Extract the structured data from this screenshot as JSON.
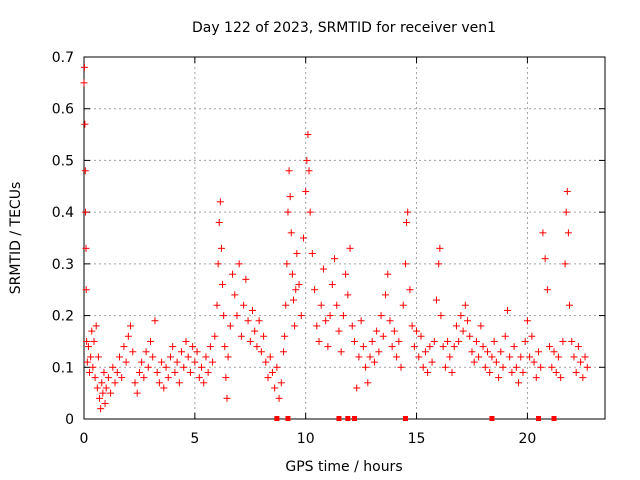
{
  "chart_data": {
    "type": "scatter",
    "title": "Day 122 of 2023, SRMTID for receiver ven1",
    "xlabel": "GPS time / hours",
    "ylabel": "SRMTID / TECUs",
    "xlim": [
      0,
      23.5
    ],
    "ylim": [
      0,
      0.7
    ],
    "xticks": [
      0,
      5,
      10,
      15,
      20
    ],
    "xtick_labels": [
      "0",
      "5",
      "10",
      "15",
      "20"
    ],
    "yticks": [
      0,
      0.1,
      0.2,
      0.3,
      0.4,
      0.5,
      0.6,
      0.7
    ],
    "ytick_labels": [
      "0",
      "0.1",
      "0.2",
      "0.3",
      "0.4",
      "0.5",
      "0.6",
      "0.7"
    ],
    "grid": true,
    "marker": "+",
    "color": "#ff0000",
    "series": [
      {
        "name": "SRMTID",
        "points": [
          [
            0.0,
            0.65
          ],
          [
            0.02,
            0.68
          ],
          [
            0.04,
            0.57
          ],
          [
            0.06,
            0.48
          ],
          [
            0.07,
            0.4
          ],
          [
            0.09,
            0.33
          ],
          [
            0.1,
            0.25
          ],
          [
            0.12,
            0.15
          ],
          [
            0.15,
            0.11
          ],
          [
            0.2,
            0.14
          ],
          [
            0.25,
            0.09
          ],
          [
            0.3,
            0.12
          ],
          [
            0.35,
            0.17
          ],
          [
            0.4,
            0.1
          ],
          [
            0.45,
            0.15
          ],
          [
            0.5,
            0.08
          ],
          [
            0.55,
            0.18
          ],
          [
            0.6,
            0.06
          ],
          [
            0.65,
            0.12
          ],
          [
            0.7,
            0.04
          ],
          [
            0.75,
            0.02
          ],
          [
            0.8,
            0.07
          ],
          [
            0.85,
            0.05
          ],
          [
            0.9,
            0.09
          ],
          [
            0.95,
            0.03
          ],
          [
            1.0,
            0.06
          ],
          [
            1.1,
            0.08
          ],
          [
            1.2,
            0.05
          ],
          [
            1.3,
            0.1
          ],
          [
            1.4,
            0.07
          ],
          [
            1.5,
            0.09
          ],
          [
            1.6,
            0.12
          ],
          [
            1.7,
            0.08
          ],
          [
            1.8,
            0.14
          ],
          [
            1.9,
            0.11
          ],
          [
            2.0,
            0.16
          ],
          [
            2.1,
            0.18
          ],
          [
            2.2,
            0.13
          ],
          [
            2.3,
            0.07
          ],
          [
            2.4,
            0.05
          ],
          [
            2.5,
            0.09
          ],
          [
            2.6,
            0.11
          ],
          [
            2.7,
            0.08
          ],
          [
            2.8,
            0.13
          ],
          [
            2.9,
            0.1
          ],
          [
            3.0,
            0.15
          ],
          [
            3.1,
            0.12
          ],
          [
            3.2,
            0.19
          ],
          [
            3.3,
            0.09
          ],
          [
            3.4,
            0.07
          ],
          [
            3.5,
            0.11
          ],
          [
            3.6,
            0.06
          ],
          [
            3.7,
            0.1
          ],
          [
            3.8,
            0.08
          ],
          [
            3.9,
            0.12
          ],
          [
            4.0,
            0.14
          ],
          [
            4.1,
            0.09
          ],
          [
            4.2,
            0.11
          ],
          [
            4.3,
            0.07
          ],
          [
            4.4,
            0.13
          ],
          [
            4.5,
            0.1
          ],
          [
            4.6,
            0.15
          ],
          [
            4.7,
            0.12
          ],
          [
            4.8,
            0.09
          ],
          [
            4.9,
            0.14
          ],
          [
            5.0,
            0.11
          ],
          [
            5.1,
            0.13
          ],
          [
            5.2,
            0.08
          ],
          [
            5.3,
            0.1
          ],
          [
            5.4,
            0.07
          ],
          [
            5.5,
            0.12
          ],
          [
            5.6,
            0.09
          ],
          [
            5.7,
            0.14
          ],
          [
            5.8,
            0.11
          ],
          [
            5.9,
            0.16
          ],
          [
            6.0,
            0.22
          ],
          [
            6.05,
            0.3
          ],
          [
            6.1,
            0.38
          ],
          [
            6.15,
            0.42
          ],
          [
            6.2,
            0.33
          ],
          [
            6.25,
            0.26
          ],
          [
            6.3,
            0.2
          ],
          [
            6.35,
            0.14
          ],
          [
            6.4,
            0.08
          ],
          [
            6.45,
            0.04
          ],
          [
            6.5,
            0.12
          ],
          [
            6.6,
            0.18
          ],
          [
            6.7,
            0.28
          ],
          [
            6.8,
            0.24
          ],
          [
            6.9,
            0.2
          ],
          [
            7.0,
            0.3
          ],
          [
            7.1,
            0.16
          ],
          [
            7.2,
            0.22
          ],
          [
            7.3,
            0.27
          ],
          [
            7.4,
            0.19
          ],
          [
            7.5,
            0.15
          ],
          [
            7.6,
            0.21
          ],
          [
            7.7,
            0.17
          ],
          [
            7.8,
            0.14
          ],
          [
            7.9,
            0.19
          ],
          [
            8.0,
            0.13
          ],
          [
            8.1,
            0.16
          ],
          [
            8.2,
            0.11
          ],
          [
            8.3,
            0.08
          ],
          [
            8.4,
            0.12
          ],
          [
            8.5,
            0.09
          ],
          [
            8.6,
            0.06
          ],
          [
            8.7,
            0.1
          ],
          [
            8.8,
            0.04
          ],
          [
            8.9,
            0.07
          ],
          [
            9.0,
            0.13
          ],
          [
            9.05,
            0.16
          ],
          [
            9.1,
            0.22
          ],
          [
            9.15,
            0.3
          ],
          [
            9.2,
            0.4
          ],
          [
            9.25,
            0.48
          ],
          [
            9.3,
            0.43
          ],
          [
            9.35,
            0.36
          ],
          [
            9.4,
            0.28
          ],
          [
            9.45,
            0.23
          ],
          [
            9.5,
            0.18
          ],
          [
            9.55,
            0.25
          ],
          [
            9.6,
            0.32
          ],
          [
            9.7,
            0.26
          ],
          [
            9.8,
            0.2
          ],
          [
            9.9,
            0.35
          ],
          [
            10.0,
            0.44
          ],
          [
            10.05,
            0.5
          ],
          [
            10.1,
            0.55
          ],
          [
            10.15,
            0.48
          ],
          [
            10.2,
            0.4
          ],
          [
            10.3,
            0.32
          ],
          [
            10.4,
            0.25
          ],
          [
            10.5,
            0.18
          ],
          [
            10.6,
            0.15
          ],
          [
            10.7,
            0.22
          ],
          [
            10.8,
            0.29
          ],
          [
            10.9,
            0.19
          ],
          [
            11.0,
            0.14
          ],
          [
            11.1,
            0.2
          ],
          [
            11.2,
            0.26
          ],
          [
            11.3,
            0.31
          ],
          [
            11.4,
            0.22
          ],
          [
            11.5,
            0.17
          ],
          [
            11.6,
            0.13
          ],
          [
            11.7,
            0.2
          ],
          [
            11.8,
            0.28
          ],
          [
            11.9,
            0.24
          ],
          [
            12.0,
            0.33
          ],
          [
            12.1,
            0.18
          ],
          [
            12.2,
            0.15
          ],
          [
            12.3,
            0.06
          ],
          [
            12.4,
            0.12
          ],
          [
            12.5,
            0.19
          ],
          [
            12.6,
            0.14
          ],
          [
            12.7,
            0.1
          ],
          [
            12.8,
            0.07
          ],
          [
            12.9,
            0.12
          ],
          [
            13.0,
            0.15
          ],
          [
            13.1,
            0.11
          ],
          [
            13.2,
            0.17
          ],
          [
            13.3,
            0.13
          ],
          [
            13.4,
            0.2
          ],
          [
            13.5,
            0.16
          ],
          [
            13.6,
            0.24
          ],
          [
            13.7,
            0.28
          ],
          [
            13.8,
            0.19
          ],
          [
            13.9,
            0.14
          ],
          [
            14.0,
            0.17
          ],
          [
            14.1,
            0.12
          ],
          [
            14.2,
            0.15
          ],
          [
            14.3,
            0.1
          ],
          [
            14.4,
            0.22
          ],
          [
            14.5,
            0.3
          ],
          [
            14.55,
            0.38
          ],
          [
            14.6,
            0.4
          ],
          [
            14.7,
            0.25
          ],
          [
            14.8,
            0.18
          ],
          [
            14.9,
            0.14
          ],
          [
            15.0,
            0.17
          ],
          [
            15.1,
            0.12
          ],
          [
            15.2,
            0.16
          ],
          [
            15.3,
            0.1
          ],
          [
            15.4,
            0.13
          ],
          [
            15.5,
            0.09
          ],
          [
            15.6,
            0.14
          ],
          [
            15.7,
            0.11
          ],
          [
            15.8,
            0.15
          ],
          [
            15.9,
            0.23
          ],
          [
            16.0,
            0.3
          ],
          [
            16.05,
            0.33
          ],
          [
            16.1,
            0.2
          ],
          [
            16.2,
            0.14
          ],
          [
            16.3,
            0.1
          ],
          [
            16.4,
            0.15
          ],
          [
            16.5,
            0.12
          ],
          [
            16.6,
            0.09
          ],
          [
            16.7,
            0.14
          ],
          [
            16.8,
            0.18
          ],
          [
            16.9,
            0.15
          ],
          [
            17.0,
            0.2
          ],
          [
            17.1,
            0.17
          ],
          [
            17.2,
            0.22
          ],
          [
            17.3,
            0.19
          ],
          [
            17.4,
            0.16
          ],
          [
            17.5,
            0.13
          ],
          [
            17.6,
            0.11
          ],
          [
            17.7,
            0.15
          ],
          [
            17.8,
            0.12
          ],
          [
            17.9,
            0.18
          ],
          [
            18.0,
            0.14
          ],
          [
            18.1,
            0.1
          ],
          [
            18.2,
            0.13
          ],
          [
            18.3,
            0.09
          ],
          [
            18.4,
            0.12
          ],
          [
            18.5,
            0.15
          ],
          [
            18.6,
            0.11
          ],
          [
            18.7,
            0.08
          ],
          [
            18.8,
            0.13
          ],
          [
            18.9,
            0.1
          ],
          [
            19.0,
            0.16
          ],
          [
            19.1,
            0.21
          ],
          [
            19.2,
            0.12
          ],
          [
            19.3,
            0.09
          ],
          [
            19.4,
            0.14
          ],
          [
            19.5,
            0.1
          ],
          [
            19.6,
            0.07
          ],
          [
            19.7,
            0.12
          ],
          [
            19.8,
            0.09
          ],
          [
            19.9,
            0.15
          ],
          [
            20.0,
            0.19
          ],
          [
            20.1,
            0.12
          ],
          [
            20.2,
            0.16
          ],
          [
            20.3,
            0.11
          ],
          [
            20.4,
            0.08
          ],
          [
            20.5,
            0.13
          ],
          [
            20.6,
            0.1
          ],
          [
            20.7,
            0.36
          ],
          [
            20.8,
            0.31
          ],
          [
            20.9,
            0.25
          ],
          [
            21.0,
            0.14
          ],
          [
            21.1,
            0.1
          ],
          [
            21.2,
            0.13
          ],
          [
            21.3,
            0.09
          ],
          [
            21.4,
            0.12
          ],
          [
            21.5,
            0.08
          ],
          [
            21.6,
            0.15
          ],
          [
            21.7,
            0.3
          ],
          [
            21.75,
            0.4
          ],
          [
            21.8,
            0.44
          ],
          [
            21.85,
            0.36
          ],
          [
            21.9,
            0.22
          ],
          [
            22.0,
            0.15
          ],
          [
            22.1,
            0.12
          ],
          [
            22.2,
            0.09
          ],
          [
            22.3,
            0.14
          ],
          [
            22.4,
            0.11
          ],
          [
            22.5,
            0.08
          ],
          [
            22.6,
            0.12
          ],
          [
            22.7,
            0.1
          ]
        ]
      }
    ],
    "zero_markers_x": [
      8.7,
      9.2,
      11.5,
      11.9,
      12.2,
      14.5,
      18.4,
      20.5,
      21.2
    ]
  }
}
